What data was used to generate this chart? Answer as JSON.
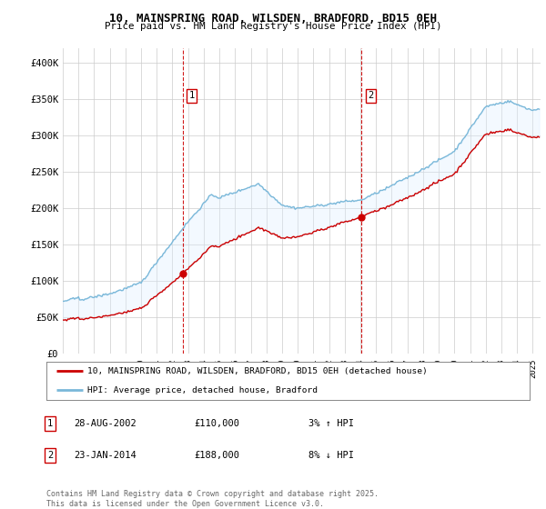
{
  "title": "10, MAINSPRING ROAD, WILSDEN, BRADFORD, BD15 0EH",
  "subtitle": "Price paid vs. HM Land Registry's House Price Index (HPI)",
  "ylabel_ticks": [
    "£0",
    "£50K",
    "£100K",
    "£150K",
    "£200K",
    "£250K",
    "£300K",
    "£350K",
    "£400K"
  ],
  "ytick_values": [
    0,
    50000,
    100000,
    150000,
    200000,
    250000,
    300000,
    350000,
    400000
  ],
  "ylim": [
    0,
    420000
  ],
  "xlim_start": 1995.0,
  "xlim_end": 2025.5,
  "sale1_date": 2002.65,
  "sale1_price": 110000,
  "sale1_label": "1",
  "sale2_date": 2014.07,
  "sale2_price": 188000,
  "sale2_label": "2",
  "hpi_color": "#7ab8d9",
  "sold_color": "#cc0000",
  "fill_color": "#ddeeff",
  "vline_color": "#cc0000",
  "grid_color": "#cccccc",
  "background_color": "#ffffff",
  "legend_line1": "10, MAINSPRING ROAD, WILSDEN, BRADFORD, BD15 0EH (detached house)",
  "legend_line2": "HPI: Average price, detached house, Bradford",
  "ann1_date": "28-AUG-2002",
  "ann1_price": "£110,000",
  "ann1_hpi": "3% ↑ HPI",
  "ann2_date": "23-JAN-2014",
  "ann2_price": "£188,000",
  "ann2_hpi": "8% ↓ HPI",
  "footer": "Contains HM Land Registry data © Crown copyright and database right 2025.\nThis data is licensed under the Open Government Licence v3.0."
}
